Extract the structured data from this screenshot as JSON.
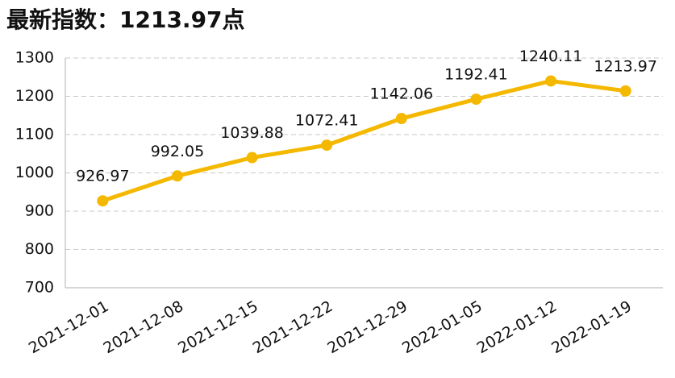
{
  "chart_data": {
    "type": "line",
    "title": "最新指数：1213.97点",
    "categories": [
      "2021-12-01",
      "2021-12-08",
      "2021-12-15",
      "2021-12-22",
      "2021-12-29",
      "2022-01-05",
      "2022-01-12",
      "2022-01-19"
    ],
    "values": [
      926.97,
      992.05,
      1039.88,
      1072.41,
      1142.06,
      1192.41,
      1240.11,
      1213.97
    ],
    "color": "#f5b800",
    "ylim": [
      700,
      1300
    ],
    "yticks": [
      700,
      800,
      900,
      1000,
      1100,
      1200,
      1300
    ],
    "grid": true
  }
}
